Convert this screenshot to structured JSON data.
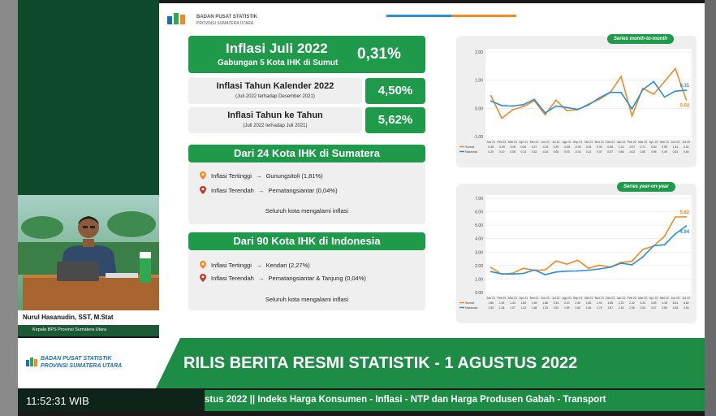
{
  "slide": {
    "logo": {
      "line1": "BADAN PUSAT STATISTIK",
      "line2": "PROVINSI SUMATERA UTARA"
    },
    "main": {
      "title": "Inflasi Juli 2022",
      "subtitle": "Gabungan 5 Kota IHK di Sumut",
      "value": "0,31%"
    },
    "kalender": {
      "title": "Inflasi Tahun Kalender 2022",
      "note": "(Juli 2022 terhadap Desember 2021)",
      "value": "4,50%"
    },
    "yoy": {
      "title": "Inflasi Tahun ke Tahun",
      "note": "(Juli 2022 terhadap Juli 2021)",
      "value": "5,62%"
    },
    "sumatera": {
      "heading": "Dari 24 Kota IHK di Sumatera",
      "highest_label": "Inflasi Tertinggi",
      "highest_value": "Gunungsitoli (1,81%)",
      "lowest_label": "Inflasi Terendah",
      "lowest_value": "Pematangsiantar (0,04%)",
      "footer": "Seluruh kota mengalami inflasi"
    },
    "indonesia": {
      "heading": "Dari 90 Kota IHK di Indonesia",
      "highest_label": "Inflasi Tertinggi",
      "highest_value": "Kendari (2,27%)",
      "lowest_label": "Inflasi Terendah",
      "lowest_value": "Pematangsiantar & Tanjung (0,04%)",
      "footer": "Seluruh kota mengalami inflasi"
    }
  },
  "chart_data": [
    {
      "type": "line",
      "title": "Series month-to-month",
      "ylim": [
        -1.0,
        2.0
      ],
      "yticks": [
        "2.00",
        "1.00",
        "0.00",
        "-1.00"
      ],
      "categories": [
        "Jan 21",
        "Feb 21",
        "Mar 21",
        "Apr 21",
        "Mei 21",
        "Jun 21",
        "Jul 21",
        "Agu 21",
        "Sep 21",
        "Okt 21",
        "Nov 21",
        "Des 21",
        "Jan 22",
        "Feb 22",
        "Mar 22",
        "Apr 22",
        "Mei 22",
        "Jun 22",
        "Jul 22"
      ],
      "series": [
        {
          "name": "Sumut",
          "color": "#f08a24",
          "values": [
            0.45,
            -0.35,
            -0.05,
            0.06,
            0.27,
            -0.23,
            0.29,
            -0.08,
            -0.05,
            0.15,
            0.32,
            0.56,
            1.13,
            -0.27,
            0.71,
            0.5,
            0.95,
            1.41,
            0.31
          ]
        },
        {
          "name": "Nasional",
          "color": "#2a8fd8",
          "values": [
            0.26,
            0.1,
            0.08,
            0.13,
            0.32,
            -0.16,
            0.08,
            0.03,
            -0.04,
            0.12,
            0.37,
            0.57,
            0.56,
            -0.02,
            0.66,
            0.95,
            0.4,
            0.61,
            0.64
          ]
        }
      ],
      "annotations": [
        "0.64",
        "0.31"
      ],
      "legend": "bottom-left"
    },
    {
      "type": "line",
      "title": "Series year-on-year",
      "ylim": [
        0.0,
        7.0
      ],
      "yticks": [
        "7.00",
        "6.00",
        "5.00",
        "4.00",
        "3.00",
        "2.00",
        "1.00",
        "0.00"
      ],
      "categories": [
        "Jan 21",
        "Feb 21",
        "Mar 21",
        "Apr 21",
        "Mei 21",
        "Jun 21",
        "Jul 21",
        "Agu 21",
        "Sep 21",
        "Okt 21",
        "Nov 21",
        "Des 21",
        "Jan 22",
        "Feb 22",
        "Mar 22",
        "Apr 22",
        "Mei 22",
        "Jun 22",
        "Jul 22"
      ],
      "series": [
        {
          "name": "Sumut",
          "color": "#f08a24",
          "values": [
            1.86,
            1.35,
            1.43,
            1.8,
            1.65,
            1.68,
            2.34,
            2.1,
            2.4,
            1.8,
            2.02,
            1.89,
            2.23,
            2.32,
            3.2,
            3.45,
            4.18,
            5.61,
            5.62
          ]
        },
        {
          "name": "Nasional",
          "color": "#2a8fd8",
          "values": [
            1.55,
            1.38,
            1.37,
            1.42,
            1.68,
            1.33,
            1.52,
            1.59,
            1.6,
            1.66,
            1.75,
            1.87,
            2.18,
            2.06,
            2.64,
            3.47,
            3.55,
            4.35,
            4.94
          ]
        }
      ],
      "annotations": [
        "5.62",
        "4.94"
      ],
      "legend": "bottom-left"
    }
  ],
  "video": {
    "name": "Nurul Hasanudin, SST, M.Stat",
    "role": "Kepala BPS Provinsi Sumatera Utara"
  },
  "banner": {
    "org_line1": "BADAN PUSAT STATISTIK",
    "org_line2": "PROVINSI SUMATERA UTARA",
    "title": "RILIS BERITA RESMI STATISTIK - 1 AGUSTUS 2022",
    "clock": "11:52:31 WIB",
    "ticker": "stus 2022 || Indeks Harga Konsumen - Inflasi - NTP dan Harga Produsen Gabah - Transport"
  },
  "colors": {
    "green": "#1e9a4a",
    "sumut": "#f08a24",
    "nasional": "#2a8fd8"
  }
}
